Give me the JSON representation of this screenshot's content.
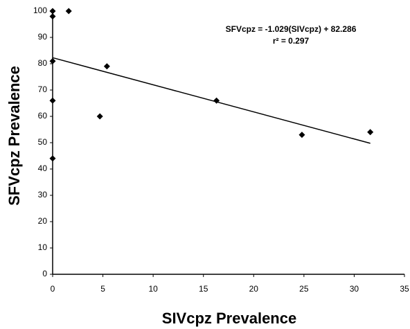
{
  "chart_data": {
    "type": "scatter",
    "x_label": "SIVcpz Prevalence",
    "y_label": "SFVcpz Prevalence",
    "annotations": [
      "SFVcpz = -1.029(SIVcpz) + 82.286",
      "r² = 0.297"
    ],
    "trendline": {
      "slope": -1.029,
      "intercept": 82.286
    },
    "x": [
      0,
      0,
      0,
      0,
      0,
      1.6,
      5.4,
      4.7,
      16.3,
      24.8,
      31.6
    ],
    "values": [
      100,
      98,
      81,
      66,
      44,
      100,
      79,
      60,
      66,
      53,
      54
    ],
    "color": "#000000",
    "xlim": [
      0,
      35
    ],
    "xticks": [
      0,
      5,
      10,
      15,
      20,
      25,
      30,
      35
    ],
    "ylim": [
      0,
      100
    ],
    "yticks": [
      0,
      10,
      20,
      30,
      40,
      50,
      60,
      70,
      80,
      90,
      100
    ],
    "grid": false
  }
}
